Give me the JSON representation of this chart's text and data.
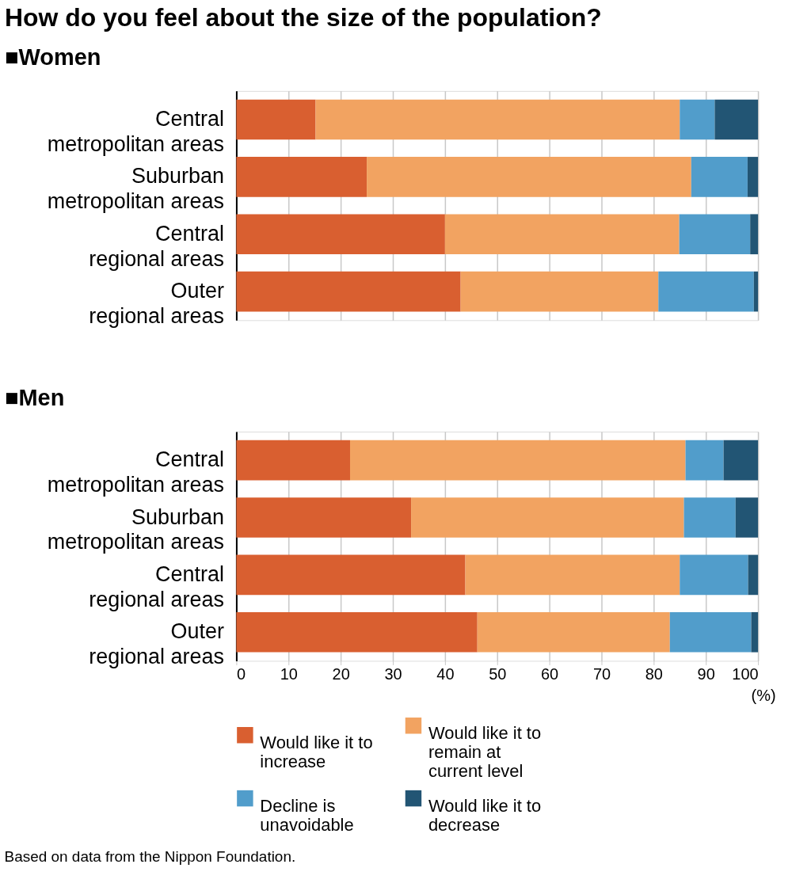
{
  "chart_data": [
    {
      "type": "bar",
      "orientation": "horizontal",
      "stacked": true,
      "title": "How do you feel about the size of the population?",
      "subtitle": "■Women",
      "categories": [
        "Central metropolitan areas",
        "Suburban metropolitan areas",
        "Central regional areas",
        "Outer regional areas"
      ],
      "series": [
        {
          "name": "Would like it to increase",
          "color": "#d95f30",
          "values": [
            15.2,
            25.0,
            40.0,
            43.0
          ]
        },
        {
          "name": "Would like it to remain at current level",
          "color": "#f2a361",
          "values": [
            69.8,
            62.2,
            44.9,
            37.9
          ]
        },
        {
          "name": "Decline is unavoidable",
          "color": "#519dcb",
          "values": [
            6.7,
            10.8,
            13.6,
            18.3
          ]
        },
        {
          "name": "Would like it to decrease",
          "color": "#225574",
          "values": [
            8.3,
            2.0,
            1.5,
            0.8
          ]
        }
      ],
      "xlim": [
        0,
        100
      ],
      "xticks": [
        0,
        10,
        20,
        30,
        40,
        50,
        60,
        70,
        80,
        90,
        100
      ],
      "grid": "x",
      "tick_labels": "y",
      "legend": "bottom"
    },
    {
      "type": "bar",
      "orientation": "horizontal",
      "stacked": true,
      "title": "■Men",
      "xlabel": "(%)",
      "categories": [
        "Central metropolitan areas",
        "Suburban metropolitan areas",
        "Central regional areas",
        "Outer regional areas"
      ],
      "series": [
        {
          "name": "Would like it to increase",
          "color": "#d95f30",
          "values": [
            21.8,
            33.5,
            43.9,
            46.2
          ]
        },
        {
          "name": "Would like it to remain at current level",
          "color": "#f2a361",
          "values": [
            64.3,
            52.3,
            41.1,
            36.9
          ]
        },
        {
          "name": "Decline is unavoidable",
          "color": "#519dcb",
          "values": [
            7.3,
            9.9,
            13.1,
            15.6
          ]
        },
        {
          "name": "Would like it to decrease",
          "color": "#225574",
          "values": [
            6.6,
            4.3,
            1.9,
            1.3
          ]
        }
      ],
      "xlim": [
        0,
        100
      ],
      "xticks": [
        0,
        10,
        20,
        30,
        40,
        50,
        60,
        70,
        80,
        90,
        100
      ],
      "grid": "x",
      "legend": "bottom",
      "annotations": [
        "Based on data from the Nippon Foundation."
      ]
    }
  ]
}
